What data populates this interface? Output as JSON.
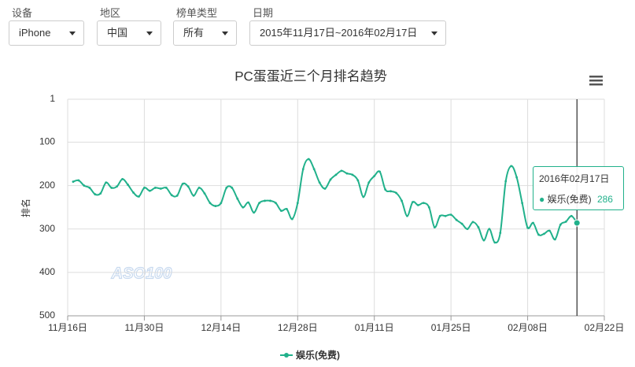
{
  "filters": [
    {
      "label": "设备",
      "value": "iPhone"
    },
    {
      "label": "地区",
      "value": "中国"
    },
    {
      "label": "榜单类型",
      "value": "所有"
    },
    {
      "label": "日期",
      "value": "2015年11月17日~2016年02月17日"
    }
  ],
  "chart_data": {
    "type": "line",
    "title": "PC蛋蛋近三个月排名趋势",
    "y_label": "排名",
    "watermark": "ASO100",
    "ylim": [
      1,
      500
    ],
    "y_reversed": true,
    "yticks": [
      1,
      100,
      200,
      300,
      400,
      500
    ],
    "xlim": [
      "2015-11-16",
      "2016-02-22"
    ],
    "xticks": [
      {
        "value": "2015-11-16",
        "label": "11月16日"
      },
      {
        "value": "2015-11-30",
        "label": "11月30日"
      },
      {
        "value": "2015-12-14",
        "label": "12月14日"
      },
      {
        "value": "2015-12-28",
        "label": "12月28日"
      },
      {
        "value": "2016-01-11",
        "label": "01月11日"
      },
      {
        "value": "2016-01-25",
        "label": "01月25日"
      },
      {
        "value": "2016-02-08",
        "label": "02月08日"
      },
      {
        "value": "2016-02-22",
        "label": "02月22日"
      }
    ],
    "grid": true,
    "x": [
      "2015-11-17",
      "2015-11-18",
      "2015-11-19",
      "2015-11-20",
      "2015-11-21",
      "2015-11-22",
      "2015-11-23",
      "2015-11-24",
      "2015-11-25",
      "2015-11-26",
      "2015-11-27",
      "2015-11-28",
      "2015-11-29",
      "2015-11-30",
      "2015-12-01",
      "2015-12-02",
      "2015-12-03",
      "2015-12-04",
      "2015-12-05",
      "2015-12-06",
      "2015-12-07",
      "2015-12-08",
      "2015-12-09",
      "2015-12-10",
      "2015-12-11",
      "2015-12-12",
      "2015-12-13",
      "2015-12-14",
      "2015-12-15",
      "2015-12-16",
      "2015-12-17",
      "2015-12-18",
      "2015-12-19",
      "2015-12-20",
      "2015-12-21",
      "2015-12-22",
      "2015-12-23",
      "2015-12-24",
      "2015-12-25",
      "2015-12-26",
      "2015-12-27",
      "2015-12-28",
      "2015-12-29",
      "2015-12-30",
      "2015-12-31",
      "2016-01-01",
      "2016-01-02",
      "2016-01-03",
      "2016-01-04",
      "2016-01-05",
      "2016-01-06",
      "2016-01-07",
      "2016-01-08",
      "2016-01-09",
      "2016-01-10",
      "2016-01-11",
      "2016-01-12",
      "2016-01-13",
      "2016-01-14",
      "2016-01-15",
      "2016-01-16",
      "2016-01-17",
      "2016-01-18",
      "2016-01-19",
      "2016-01-20",
      "2016-01-21",
      "2016-01-22",
      "2016-01-23",
      "2016-01-24",
      "2016-01-25",
      "2016-01-26",
      "2016-01-27",
      "2016-01-28",
      "2016-01-29",
      "2016-01-30",
      "2016-01-31",
      "2016-02-01",
      "2016-02-02",
      "2016-02-03",
      "2016-02-04",
      "2016-02-05",
      "2016-02-06",
      "2016-02-07",
      "2016-02-08",
      "2016-02-09",
      "2016-02-10",
      "2016-02-11",
      "2016-02-12",
      "2016-02-13",
      "2016-02-14",
      "2016-02-15",
      "2016-02-16",
      "2016-02-17"
    ],
    "series": [
      {
        "name": "娱乐(免费)",
        "color": "#21b18b",
        "values": [
          191,
          188,
          200,
          205,
          220,
          218,
          193,
          205,
          202,
          185,
          198,
          216,
          225,
          205,
          212,
          205,
          207,
          205,
          222,
          223,
          196,
          202,
          223,
          205,
          218,
          240,
          247,
          240,
          205,
          205,
          230,
          250,
          239,
          262,
          240,
          235,
          235,
          240,
          258,
          254,
          277,
          240,
          162,
          139,
          162,
          193,
          207,
          186,
          175,
          166,
          172,
          175,
          188,
          226,
          193,
          178,
          168,
          209,
          213,
          217,
          235,
          270,
          238,
          245,
          240,
          250,
          296,
          270,
          270,
          267,
          279,
          288,
          300,
          284,
          296,
          326,
          300,
          331,
          309,
          190,
          155,
          181,
          240,
          297,
          286,
          313,
          311,
          304,
          324,
          290,
          283,
          270,
          286
        ]
      }
    ],
    "tooltip": {
      "title": "2016年02月17日"
    }
  }
}
